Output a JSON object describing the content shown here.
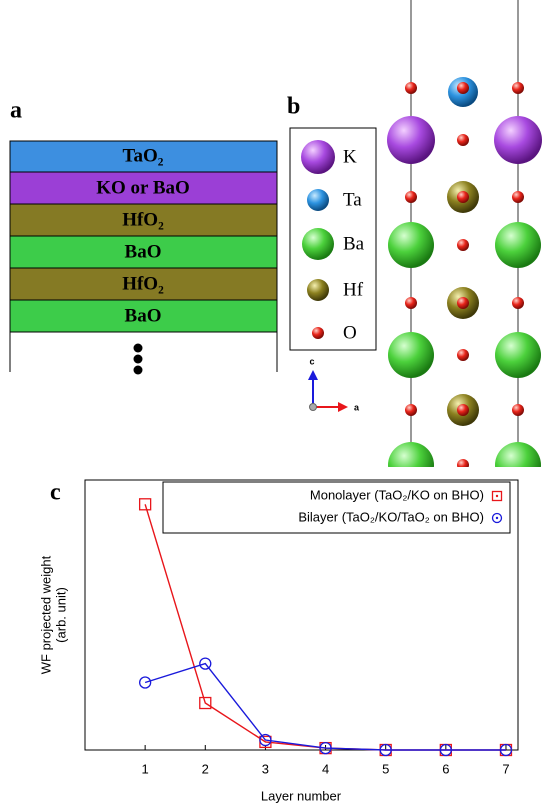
{
  "panel_a": {
    "label": "a",
    "layers": [
      "TaO₂",
      "KO or BaO",
      "HfO₂",
      "BaO",
      "HfO₂",
      "BaO"
    ]
  },
  "panel_b": {
    "label": "b",
    "legend": [
      "K",
      "Ta",
      "Ba",
      "Hf",
      "O"
    ],
    "axis_labels": [
      "c",
      "a"
    ]
  },
  "chart_data": {
    "type": "line",
    "panel_label": "c",
    "x_label": "Layer number",
    "y_label": [
      "WF projected weight",
      "(arb. unit)"
    ],
    "x": [
      1,
      2,
      3,
      4,
      5,
      6,
      7
    ],
    "xlim": [
      0,
      7.2
    ],
    "xticks": [
      1,
      2,
      3,
      4,
      5,
      6,
      7
    ],
    "ylim": [
      0,
      1
    ],
    "series": [
      {
        "name": "Monolayer (TaO₂/KO on BHO)",
        "color": "#e8161b",
        "marker": "square",
        "values": [
          0.91,
          0.174,
          0.03,
          0.007,
          0,
          0,
          0
        ]
      },
      {
        "name": "Bilayer (TaO₂/KO/TaO₂ on BHO)",
        "color": "#1a1adb",
        "marker": "circle",
        "values": [
          0.25,
          0.32,
          0.037,
          0.007,
          0,
          0,
          0
        ]
      }
    ]
  }
}
